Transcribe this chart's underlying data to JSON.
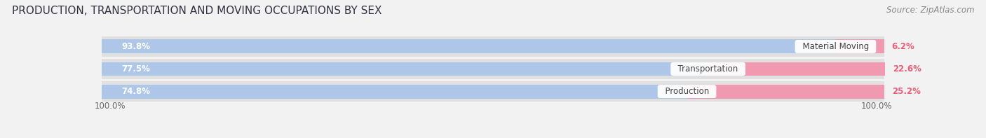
{
  "title": "PRODUCTION, TRANSPORTATION AND MOVING OCCUPATIONS BY SEX",
  "source": "Source: ZipAtlas.com",
  "categories": [
    "Material Moving",
    "Transportation",
    "Production"
  ],
  "male_values": [
    93.8,
    77.5,
    74.8
  ],
  "female_values": [
    6.2,
    22.6,
    25.2
  ],
  "male_color": "#aec6e8",
  "female_color": "#f199b0",
  "male_color_dark": "#7badd4",
  "female_color_dark": "#e8607a",
  "bg_color": "#f2f2f2",
  "bar_bg_color": "#e0e0e0",
  "title_fontsize": 11,
  "source_fontsize": 8.5,
  "bar_label_fontsize": 8.5,
  "cat_label_fontsize": 8.5,
  "axis_label_fontsize": 8.5,
  "legend_fontsize": 9,
  "axis_label_left": "100.0%",
  "axis_label_right": "100.0%",
  "figsize": [
    14.06,
    1.97
  ],
  "dpi": 100
}
